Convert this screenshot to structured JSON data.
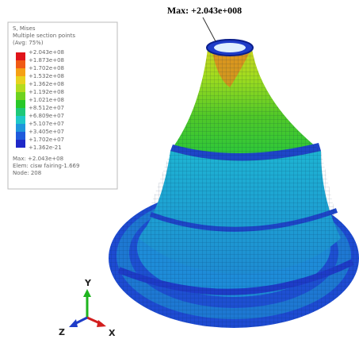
{
  "max_annotation": "Max: +2.043e+008",
  "legend": {
    "title": [
      "S, Mises",
      "Multiple section points",
      "(Avg: 75%)"
    ],
    "labels": [
      "+2.043e+08",
      "+1.873e+08",
      "+1.702e+08",
      "+1.532e+08",
      "+1.362e+08",
      "+1.192e+08",
      "+1.021e+08",
      "+8.512e+07",
      "+6.809e+07",
      "+5.107e+07",
      "+3.405e+07",
      "+1.702e+07",
      "+1.362e-21"
    ],
    "footer": [
      "Max: +2.043e+08",
      "Elem: cisw fairing-1.669",
      "Node: 208"
    ]
  },
  "triad": {
    "x": "X",
    "y": "Y",
    "z": "Z"
  }
}
